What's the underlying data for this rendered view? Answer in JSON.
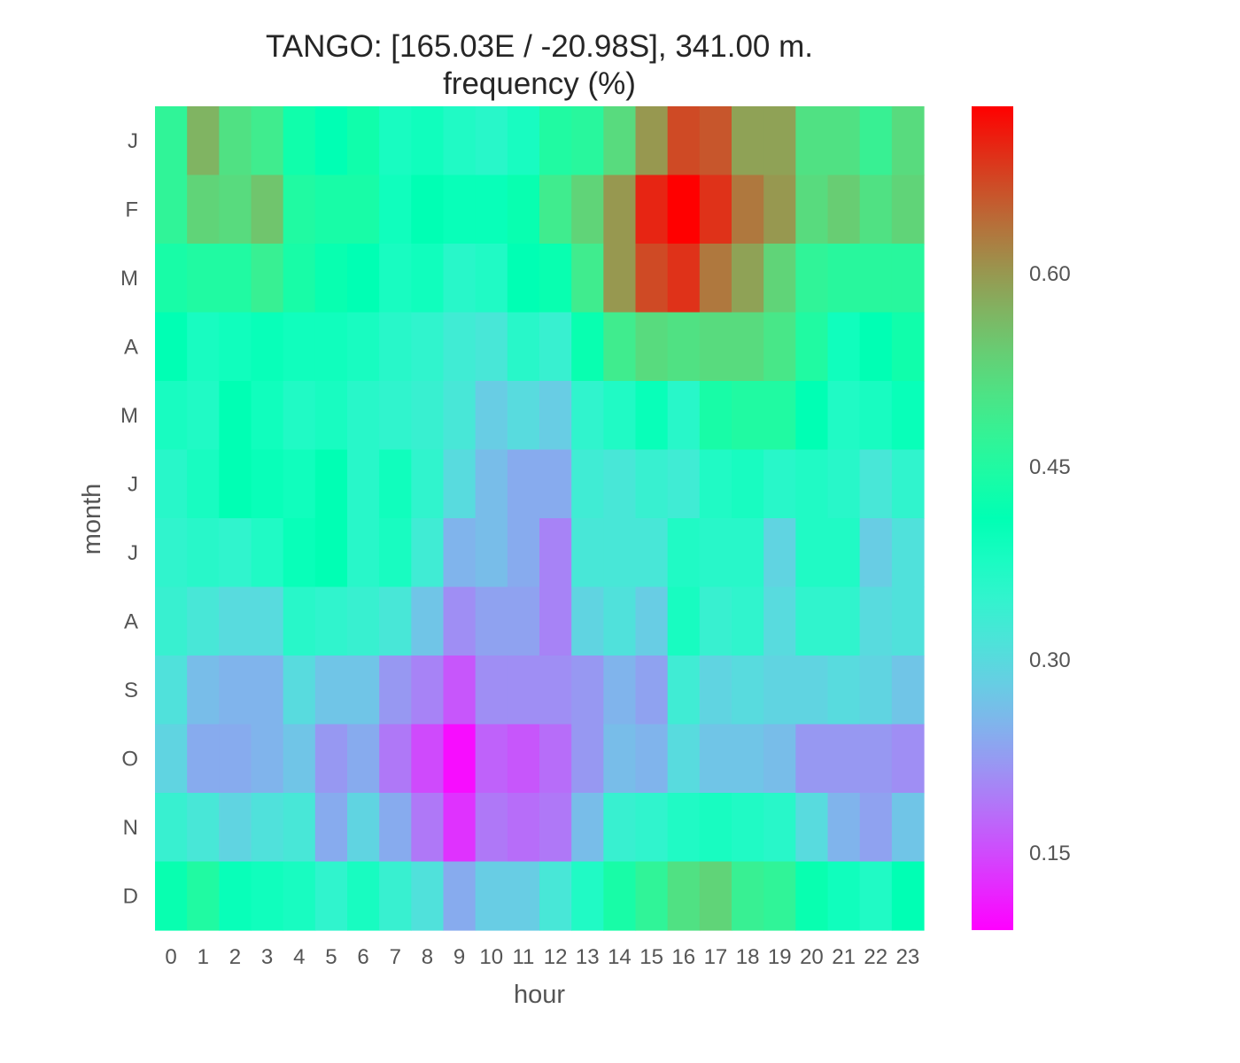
{
  "chart_data": {
    "type": "heatmap",
    "title": "TANGO: [165.03E / -20.98S], 341.00 m.",
    "subtitle": "frequency (%)",
    "xlabel": "hour",
    "ylabel": "month",
    "x_categories": [
      "0",
      "1",
      "2",
      "3",
      "4",
      "5",
      "6",
      "7",
      "8",
      "9",
      "10",
      "11",
      "12",
      "13",
      "14",
      "15",
      "16",
      "17",
      "18",
      "19",
      "20",
      "21",
      "22",
      "23"
    ],
    "y_categories": [
      "J",
      "F",
      "M",
      "A",
      "M",
      "J",
      "J",
      "A",
      "S",
      "O",
      "N",
      "D"
    ],
    "colorbar": {
      "colormap": "rainbow",
      "vmin": 0.09,
      "vmax": 0.73,
      "ticks": [
        "0.15",
        "0.30",
        "0.45",
        "0.60"
      ],
      "tick_values": [
        0.15,
        0.3,
        0.45,
        0.6
      ]
    },
    "values": [
      [
        0.47,
        0.57,
        0.51,
        0.49,
        0.43,
        0.41,
        0.43,
        0.38,
        0.39,
        0.37,
        0.36,
        0.38,
        0.45,
        0.46,
        0.52,
        0.6,
        0.67,
        0.66,
        0.59,
        0.59,
        0.51,
        0.51,
        0.48,
        0.52
      ],
      [
        0.47,
        0.53,
        0.52,
        0.55,
        0.45,
        0.44,
        0.44,
        0.39,
        0.41,
        0.4,
        0.4,
        0.42,
        0.49,
        0.53,
        0.6,
        0.7,
        0.73,
        0.69,
        0.63,
        0.6,
        0.52,
        0.54,
        0.51,
        0.53
      ],
      [
        0.44,
        0.45,
        0.45,
        0.48,
        0.44,
        0.42,
        0.41,
        0.38,
        0.39,
        0.36,
        0.37,
        0.41,
        0.42,
        0.49,
        0.6,
        0.67,
        0.69,
        0.63,
        0.59,
        0.53,
        0.47,
        0.46,
        0.46,
        0.46
      ],
      [
        0.41,
        0.38,
        0.39,
        0.4,
        0.39,
        0.39,
        0.38,
        0.36,
        0.35,
        0.33,
        0.32,
        0.36,
        0.34,
        0.42,
        0.49,
        0.52,
        0.51,
        0.52,
        0.52,
        0.5,
        0.45,
        0.39,
        0.41,
        0.43
      ],
      [
        0.38,
        0.37,
        0.41,
        0.39,
        0.37,
        0.38,
        0.36,
        0.35,
        0.34,
        0.32,
        0.28,
        0.3,
        0.28,
        0.35,
        0.37,
        0.4,
        0.36,
        0.44,
        0.45,
        0.45,
        0.41,
        0.37,
        0.38,
        0.4
      ],
      [
        0.36,
        0.38,
        0.41,
        0.4,
        0.39,
        0.41,
        0.36,
        0.39,
        0.35,
        0.3,
        0.26,
        0.24,
        0.24,
        0.33,
        0.32,
        0.34,
        0.33,
        0.37,
        0.38,
        0.36,
        0.37,
        0.36,
        0.32,
        0.35
      ],
      [
        0.35,
        0.36,
        0.35,
        0.37,
        0.4,
        0.41,
        0.36,
        0.38,
        0.33,
        0.25,
        0.26,
        0.24,
        0.2,
        0.32,
        0.32,
        0.32,
        0.37,
        0.36,
        0.36,
        0.29,
        0.37,
        0.37,
        0.28,
        0.31
      ],
      [
        0.34,
        0.32,
        0.3,
        0.3,
        0.36,
        0.35,
        0.34,
        0.32,
        0.27,
        0.21,
        0.23,
        0.23,
        0.2,
        0.29,
        0.31,
        0.28,
        0.38,
        0.34,
        0.35,
        0.3,
        0.35,
        0.35,
        0.3,
        0.31
      ],
      [
        0.31,
        0.26,
        0.25,
        0.25,
        0.3,
        0.27,
        0.27,
        0.22,
        0.2,
        0.16,
        0.21,
        0.21,
        0.21,
        0.22,
        0.25,
        0.23,
        0.33,
        0.29,
        0.3,
        0.29,
        0.29,
        0.3,
        0.29,
        0.27
      ],
      [
        0.29,
        0.24,
        0.24,
        0.25,
        0.27,
        0.22,
        0.24,
        0.19,
        0.15,
        0.1,
        0.17,
        0.16,
        0.18,
        0.22,
        0.26,
        0.25,
        0.3,
        0.27,
        0.27,
        0.26,
        0.22,
        0.22,
        0.22,
        0.21
      ],
      [
        0.34,
        0.32,
        0.29,
        0.31,
        0.32,
        0.24,
        0.29,
        0.24,
        0.19,
        0.13,
        0.19,
        0.18,
        0.19,
        0.26,
        0.34,
        0.35,
        0.37,
        0.38,
        0.37,
        0.36,
        0.3,
        0.25,
        0.23,
        0.27
      ],
      [
        0.42,
        0.45,
        0.4,
        0.39,
        0.38,
        0.35,
        0.38,
        0.34,
        0.31,
        0.24,
        0.28,
        0.28,
        0.32,
        0.37,
        0.44,
        0.47,
        0.51,
        0.53,
        0.48,
        0.47,
        0.42,
        0.39,
        0.37,
        0.41
      ]
    ]
  }
}
